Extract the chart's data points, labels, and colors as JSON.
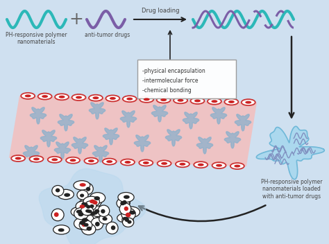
{
  "bg_color": "#cfe0f0",
  "wave_teal_color": "#2cb8b8",
  "wave_purple_color": "#7b5ea7",
  "label_ph_polymer": "PH-responsive polymer\nnanomaterials",
  "label_antitumor": "anti-tumor drugs",
  "label_drug_loading": "Drug loading",
  "box_labels": [
    "-physical encapsulation",
    "-intermolecular force",
    "-chemical bonding"
  ],
  "label_nanoparticle": "PH-responsive polymer\nnanomaterials loaded\nwith anti-tumor drugs",
  "vessel_color": "#f2c0c0",
  "vessel_border_color": "#cc3333",
  "rbc_fill": "#ffffff",
  "rbc_center_color": "#cc2222",
  "blue_dot_color": "#8ab0cc",
  "nanoparticle_cloud_color": "#a8d8ee",
  "nanoparticle_squiggle_color": "#8090c0",
  "arrow_color": "#222222",
  "text_color": "#444444",
  "cell_fill": "#ffffff",
  "cell_border": "#222222",
  "nucleus_dark": "#222222",
  "nucleus_red": "#cc2222",
  "figsize": [
    4.74,
    3.52
  ],
  "dpi": 100
}
